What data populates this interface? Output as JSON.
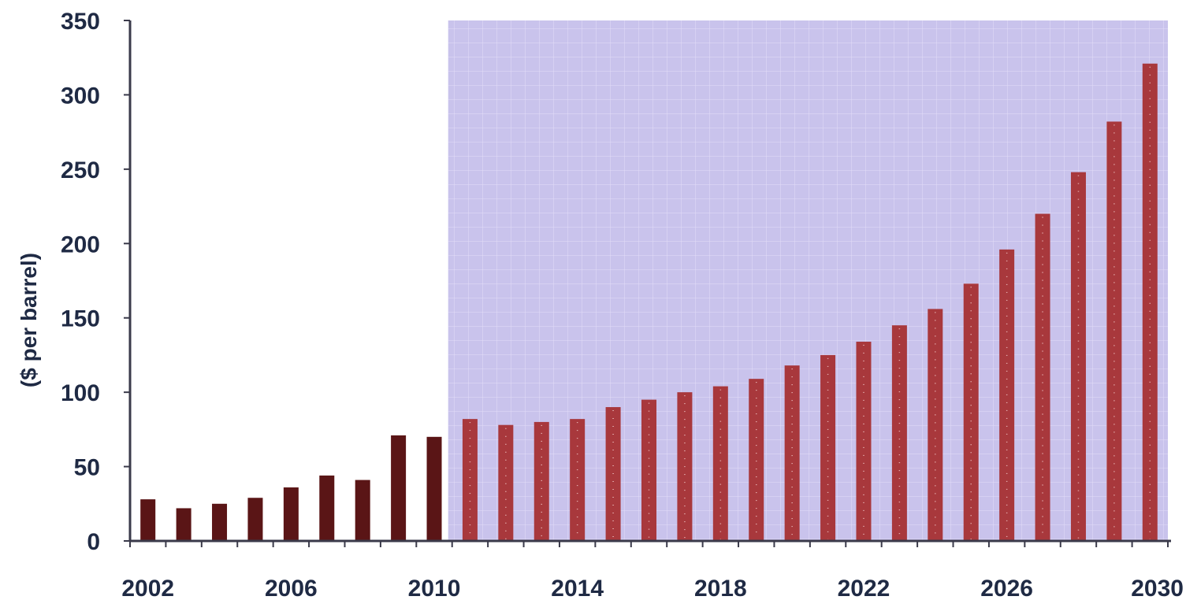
{
  "chart_data": {
    "type": "bar",
    "title": "",
    "xlabel": "",
    "ylabel": "($ per barrel)",
    "ylim": [
      0,
      350
    ],
    "yticks": [
      0,
      50,
      100,
      150,
      200,
      250,
      300,
      350
    ],
    "x_tick_labels": [
      "2002",
      "2006",
      "2010",
      "2014",
      "2018",
      "2022",
      "2026",
      "2030"
    ],
    "categories": [
      2002,
      2003,
      2004,
      2005,
      2006,
      2007,
      2008,
      2009,
      2010,
      2011,
      2012,
      2013,
      2014,
      2015,
      2016,
      2017,
      2018,
      2019,
      2020,
      2021,
      2022,
      2023,
      2024,
      2025,
      2026,
      2027,
      2028,
      2029,
      2030
    ],
    "values": [
      28,
      22,
      25,
      29,
      36,
      44,
      41,
      71,
      70,
      82,
      78,
      80,
      82,
      90,
      95,
      100,
      104,
      109,
      118,
      125,
      134,
      145,
      156,
      173,
      196,
      220,
      248,
      282,
      321
    ],
    "projection_start": 2011,
    "grid": false,
    "legend": "none",
    "colors": {
      "historical_bar": "#5a1516",
      "projected_bar": "#a8383c",
      "projection_shade": "#c9c3ec",
      "axis": "#3a3a4a",
      "text": "#1f2a44"
    }
  }
}
